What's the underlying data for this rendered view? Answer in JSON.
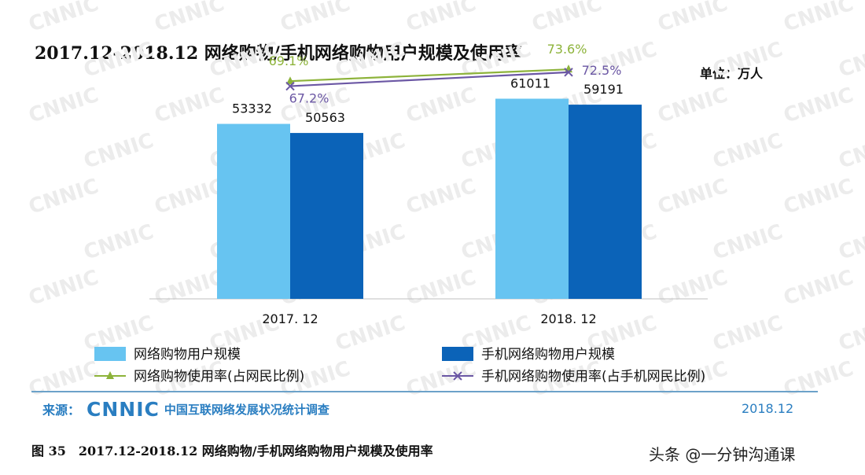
{
  "title": "2017.12-2018.12 网络购物/手机网络购物用户规模及使用率",
  "unit_label": "单位：万人",
  "watermark_text": "CNNIC",
  "source": {
    "label": "来源：",
    "logo": "CNNIC",
    "org": "中国互联网络发展状况统计调查",
    "date": "2018.12"
  },
  "caption": "图 35　2017.12-2018.12 网络购物/手机网络购物用户规模及使用率",
  "credit": "头条 @一分钟沟通课",
  "colors": {
    "bar_online": "#67c4f1",
    "bar_mobile": "#0b63b8",
    "line_online": "#8db33a",
    "line_mobile": "#6b57a4",
    "label_online_rate": "#8db33a",
    "label_mobile_rate": "#6b57a4"
  },
  "chart_data": {
    "type": "bar",
    "categories": [
      "2017. 12",
      "2018. 12"
    ],
    "series": [
      {
        "name": "网络购物用户规模",
        "type": "bar",
        "values": [
          53332,
          61011
        ]
      },
      {
        "name": "手机网络购物用户规模",
        "type": "bar",
        "values": [
          50563,
          59191
        ]
      },
      {
        "name": "网络购物使用率(占网民比例)",
        "type": "line",
        "values": [
          69.1,
          73.6
        ],
        "labels": [
          "69.1%",
          "73.6%"
        ]
      },
      {
        "name": "手机网络购物使用率(占手机网民比例)",
        "type": "line",
        "values": [
          67.2,
          72.5
        ],
        "labels": [
          "67.2%",
          "72.5%"
        ]
      }
    ],
    "bar_ylim": [
      0,
      70000
    ],
    "line_ylim": [
      0,
      100
    ],
    "grid": false,
    "legend_position": "bottom"
  }
}
